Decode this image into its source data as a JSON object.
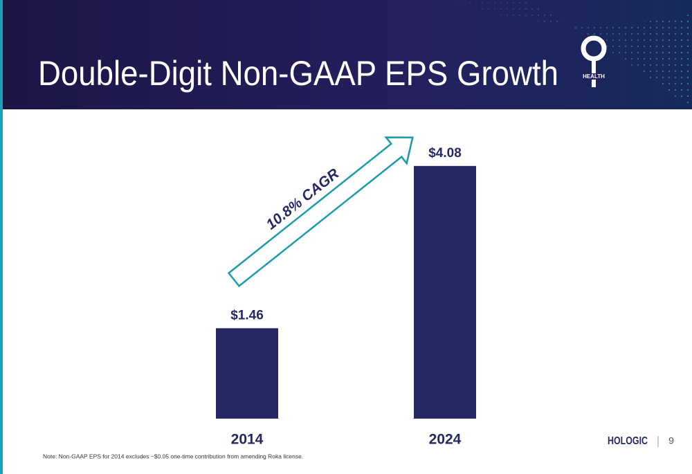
{
  "chart_data": {
    "type": "bar",
    "title": "Double-Digit Non-GAAP EPS Growth",
    "categories": [
      "2014",
      "2024"
    ],
    "values": [
      1.46,
      4.08
    ],
    "value_labels": [
      "$1.46",
      "$4.08"
    ],
    "color": "#252863",
    "annotation": "10.8% CAGR",
    "note": "Note:  Non-GAAP EPS for 2014 excludes ~$0.05 one-time contribution from amending Roka license."
  },
  "logo": {
    "brand": "HOLOGIC",
    "badge": "HEALTH"
  },
  "page_number": "9"
}
